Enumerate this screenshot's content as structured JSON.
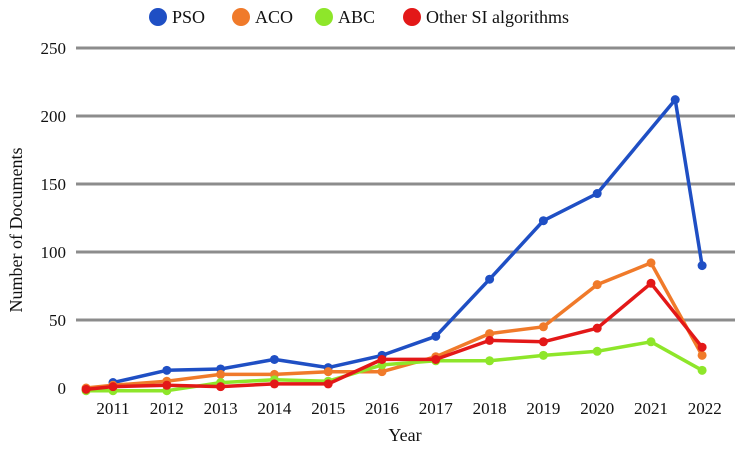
{
  "chart_data": {
    "type": "line",
    "title": "",
    "xlabel": "Year",
    "ylabel": "Number of Documents",
    "ylim": [
      0,
      250
    ],
    "yticks": [
      0,
      50,
      100,
      150,
      200,
      250
    ],
    "grid": "horizontal",
    "legend_position": "top",
    "categories": [
      "2011",
      "2012",
      "2013",
      "2014",
      "2015",
      "2016",
      "2017",
      "2018",
      "2019",
      "2020",
      "2021",
      "2022"
    ],
    "series": [
      {
        "name": "PSO",
        "color": "#1f4fc4",
        "points": [
          {
            "x": 2011.0,
            "y": 4
          },
          {
            "x": 2012.0,
            "y": 13
          },
          {
            "x": 2013.0,
            "y": 14
          },
          {
            "x": 2014.0,
            "y": 21
          },
          {
            "x": 2015.0,
            "y": 15
          },
          {
            "x": 2016.0,
            "y": 24
          },
          {
            "x": 2017.0,
            "y": 38
          },
          {
            "x": 2018.0,
            "y": 80
          },
          {
            "x": 2019.0,
            "y": 123
          },
          {
            "x": 2020.0,
            "y": 143
          },
          {
            "x": 2021.45,
            "y": 212
          },
          {
            "x": 2021.95,
            "y": 90
          }
        ]
      },
      {
        "name": "ACO",
        "color": "#f07a2a",
        "points": [
          {
            "x": 2010.5,
            "y": 0
          },
          {
            "x": 2011.0,
            "y": 2
          },
          {
            "x": 2012.0,
            "y": 5
          },
          {
            "x": 2013.0,
            "y": 10
          },
          {
            "x": 2014.0,
            "y": 10
          },
          {
            "x": 2015.0,
            "y": 12
          },
          {
            "x": 2016.0,
            "y": 12
          },
          {
            "x": 2017.0,
            "y": 23
          },
          {
            "x": 2018.0,
            "y": 40
          },
          {
            "x": 2019.0,
            "y": 45
          },
          {
            "x": 2020.0,
            "y": 76
          },
          {
            "x": 2021.0,
            "y": 92
          },
          {
            "x": 2021.95,
            "y": 24
          }
        ]
      },
      {
        "name": "ABC",
        "color": "#8ee62a",
        "points": [
          {
            "x": 2010.5,
            "y": -2
          },
          {
            "x": 2011.0,
            "y": -2
          },
          {
            "x": 2012.0,
            "y": -2
          },
          {
            "x": 2013.0,
            "y": 4
          },
          {
            "x": 2014.0,
            "y": 6
          },
          {
            "x": 2015.0,
            "y": 5
          },
          {
            "x": 2016.0,
            "y": 17
          },
          {
            "x": 2017.0,
            "y": 20
          },
          {
            "x": 2018.0,
            "y": 20
          },
          {
            "x": 2019.0,
            "y": 24
          },
          {
            "x": 2020.0,
            "y": 27
          },
          {
            "x": 2021.0,
            "y": 34
          },
          {
            "x": 2021.95,
            "y": 13
          }
        ]
      },
      {
        "name": "Other SI algorithms",
        "color": "#e31818",
        "points": [
          {
            "x": 2010.5,
            "y": -1
          },
          {
            "x": 2011.0,
            "y": 1
          },
          {
            "x": 2012.0,
            "y": 2
          },
          {
            "x": 2013.0,
            "y": 1
          },
          {
            "x": 2014.0,
            "y": 3
          },
          {
            "x": 2015.0,
            "y": 3
          },
          {
            "x": 2016.0,
            "y": 21
          },
          {
            "x": 2017.0,
            "y": 21
          },
          {
            "x": 2018.0,
            "y": 35
          },
          {
            "x": 2019.0,
            "y": 34
          },
          {
            "x": 2020.0,
            "y": 44
          },
          {
            "x": 2021.0,
            "y": 77
          },
          {
            "x": 2021.95,
            "y": 30
          }
        ]
      }
    ]
  }
}
